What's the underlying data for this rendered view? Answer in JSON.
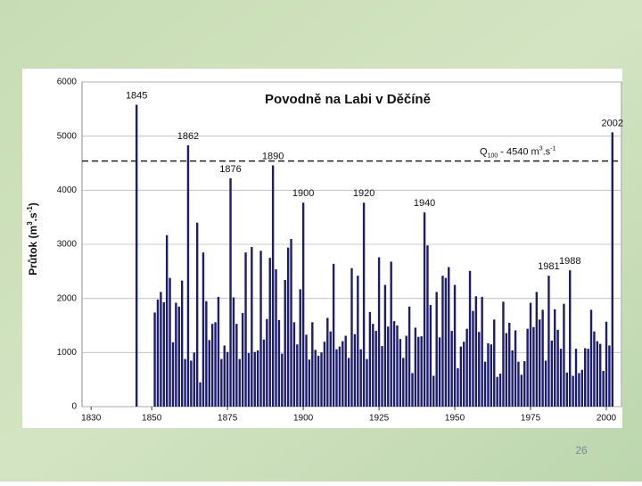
{
  "chart_data": {
    "type": "bar",
    "title": "Povodně na Labi v Děčíně",
    "y_label_parts": [
      "Průtok (m",
      "3",
      ".s",
      "-1",
      ")"
    ],
    "x": [
      1845,
      1851,
      1852,
      1853,
      1854,
      1855,
      1856,
      1857,
      1858,
      1859,
      1860,
      1861,
      1862,
      1863,
      1864,
      1865,
      1866,
      1867,
      1868,
      1869,
      1870,
      1871,
      1872,
      1873,
      1874,
      1875,
      1876,
      1877,
      1878,
      1879,
      1880,
      1881,
      1882,
      1883,
      1884,
      1885,
      1886,
      1887,
      1888,
      1889,
      1890,
      1891,
      1892,
      1893,
      1894,
      1895,
      1896,
      1897,
      1898,
      1899,
      1900,
      1901,
      1902,
      1903,
      1904,
      1905,
      1906,
      1907,
      1908,
      1909,
      1910,
      1911,
      1912,
      1913,
      1914,
      1915,
      1916,
      1917,
      1918,
      1919,
      1920,
      1921,
      1922,
      1923,
      1924,
      1925,
      1926,
      1927,
      1928,
      1929,
      1930,
      1931,
      1932,
      1933,
      1934,
      1935,
      1936,
      1937,
      1938,
      1939,
      1940,
      1941,
      1942,
      1943,
      1944,
      1945,
      1946,
      1947,
      1948,
      1949,
      1950,
      1951,
      1952,
      1953,
      1954,
      1955,
      1956,
      1957,
      1958,
      1959,
      1960,
      1961,
      1962,
      1963,
      1964,
      1965,
      1966,
      1967,
      1968,
      1969,
      1970,
      1971,
      1972,
      1973,
      1974,
      1975,
      1976,
      1977,
      1978,
      1979,
      1980,
      1981,
      1982,
      1983,
      1984,
      1985,
      1986,
      1987,
      1988,
      1989,
      1990,
      1991,
      1992,
      1993,
      1994,
      1995,
      1996,
      1997,
      1998,
      1999,
      2000,
      2001,
      2002
    ],
    "values": [
      5580,
      1740,
      1980,
      2120,
      1930,
      3170,
      2380,
      1190,
      1920,
      1850,
      2330,
      880,
      4830,
      850,
      1000,
      3400,
      450,
      2850,
      1950,
      1230,
      1530,
      1560,
      2030,
      880,
      1130,
      1010,
      4220,
      2020,
      1530,
      880,
      1730,
      2850,
      990,
      2950,
      1010,
      1040,
      2880,
      1240,
      1620,
      2750,
      4460,
      2540,
      1600,
      980,
      2340,
      2940,
      3100,
      1560,
      1150,
      2170,
      3770,
      1330,
      870,
      1560,
      1050,
      940,
      1000,
      1200,
      1640,
      1390,
      2640,
      1060,
      1110,
      1210,
      1310,
      900,
      2560,
      1340,
      2420,
      1060,
      3770,
      880,
      1750,
      1530,
      1400,
      2760,
      1120,
      2250,
      1480,
      2680,
      1580,
      1500,
      1250,
      900,
      1310,
      1850,
      620,
      1460,
      1290,
      1300,
      3590,
      2980,
      1880,
      570,
      2120,
      1280,
      2420,
      2380,
      2580,
      1400,
      2250,
      710,
      1110,
      1200,
      1440,
      2510,
      1770,
      2040,
      1380,
      2030,
      830,
      1170,
      1150,
      1610,
      550,
      610,
      1940,
      1360,
      1550,
      1040,
      1410,
      830,
      590,
      840,
      1440,
      1920,
      1470,
      2120,
      1610,
      1790,
      850,
      2420,
      1220,
      1800,
      1420,
      1070,
      1900,
      630,
      2520,
      570,
      1070,
      620,
      680,
      1080,
      1070,
      1790,
      1390,
      1210,
      1160,
      660,
      1570,
      1130,
      5070
    ],
    "color": "#1c1c70",
    "annotations": [
      1845,
      1862,
      1876,
      1890,
      1900,
      1920,
      1940,
      1981,
      1988,
      2002
    ],
    "reference_line": {
      "value": 4540,
      "label_parts": [
        "Q",
        "100",
        " - 4540 m",
        "3",
        ".s",
        "-1"
      ]
    },
    "xlim": [
      1827,
      2005
    ],
    "xticks": [
      1830,
      1850,
      1875,
      1900,
      1925,
      1950,
      1975,
      2000
    ],
    "ylim": [
      0,
      6000
    ],
    "yticks": [
      0,
      1000,
      2000,
      3000,
      4000,
      5000,
      6000
    ],
    "grid": true
  },
  "page_number": "26"
}
